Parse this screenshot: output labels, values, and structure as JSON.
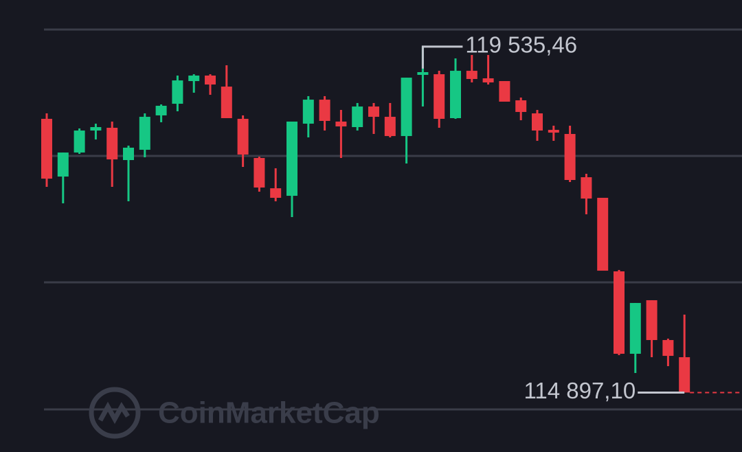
{
  "chart_data": {
    "type": "candlestick",
    "up_color": "#16c784",
    "down_color": "#ea3943",
    "ylim": [
      114100,
      120160
    ],
    "open": [
      118567,
      117793,
      118115,
      118410,
      118447,
      118014,
      118152,
      118613,
      118769,
      119073,
      119147,
      118999,
      118567,
      118042,
      117636,
      117535,
      118502,
      118824,
      118530,
      118456,
      118732,
      118594,
      118336,
      119156,
      119165,
      118576,
      119211,
      119110,
      119073,
      118815,
      118640,
      118419,
      118364,
      117784,
      117508,
      116522,
      115417,
      116135,
      115601,
      115371
    ],
    "high": [
      118640,
      118115,
      118438,
      118502,
      118530,
      118207,
      118640,
      118760,
      119147,
      119165,
      119165,
      119285,
      118613,
      118060,
      117904,
      118530,
      118871,
      118871,
      118686,
      118779,
      118779,
      118779,
      119119,
      119535.46,
      119211,
      119377,
      119423,
      119423,
      119073,
      118852,
      118686,
      118475,
      118475,
      117830,
      117508,
      116541,
      116098,
      116135,
      115620,
      115942
    ],
    "low": [
      117655,
      117434,
      118097,
      118290,
      117655,
      117461,
      118051,
      118521,
      118668,
      118917,
      118889,
      118576,
      117922,
      117590,
      117461,
      117250,
      118318,
      118410,
      118042,
      118410,
      118364,
      118318,
      117968,
      118732,
      118447,
      118567,
      119055,
      119027,
      118797,
      118548,
      118272,
      118272,
      117719,
      117287,
      116531,
      115398,
      115159,
      115371,
      115251,
      114897.1
    ],
    "close": [
      117765,
      118115,
      118410,
      118456,
      118023,
      118180,
      118594,
      118742,
      119082,
      119147,
      119027,
      118576,
      118088,
      117646,
      117508,
      118530,
      118824,
      118539,
      118465,
      118732,
      118594,
      118336,
      119119,
      119193,
      118567,
      119211,
      119101,
      119055,
      118797,
      118659,
      118410,
      118382,
      117747,
      117498,
      116531,
      115417,
      116098,
      115601,
      115389,
      114897.1
    ],
    "annotations": [
      {
        "value": 119535.46,
        "label": "119 535,46"
      },
      {
        "value": 114897.1,
        "label": "114 897,10"
      }
    ],
    "watermark": "CoinMarketCap"
  }
}
